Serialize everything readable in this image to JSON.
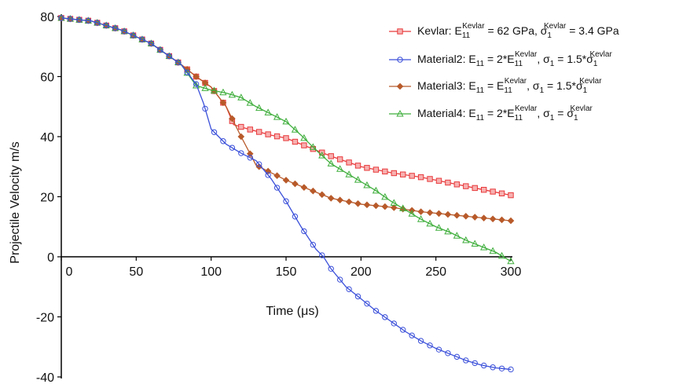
{
  "chart_data": {
    "type": "line",
    "title": "",
    "xlabel": "Time (μs)",
    "ylabel": "Projectile Velocity m/s",
    "xlim": [
      0,
      300
    ],
    "ylim": [
      -40,
      80
    ],
    "xticks": [
      "0",
      "50",
      "100",
      "150",
      "200",
      "250",
      "300"
    ],
    "yticks": [
      "80",
      "60",
      "40",
      "20",
      "0",
      "-20",
      "-40"
    ],
    "grid": false,
    "legend_position": "top-right",
    "series": [
      {
        "name": "Kevlar: E11Kevlar = 62 GPa, σ1Kevlar = 3.4 GPa",
        "legend_parts": {
          "a": "Kevlar: E",
          "b": "11",
          "c": "Kevlar",
          "d": " = 62 GPa, σ",
          "e": "1",
          "f": "Kevlar",
          "g": " = 3.4 GPa"
        },
        "color": "#e8393b",
        "marker": "square",
        "x": [
          0,
          20,
          40,
          60,
          70,
          80,
          90,
          100,
          110,
          115,
          125,
          140,
          150,
          160,
          170,
          180,
          200,
          220,
          240,
          260,
          280,
          300
        ],
        "y": [
          79.5,
          78.5,
          75.5,
          71,
          67.5,
          64,
          60,
          56.5,
          50,
          44,
          42.5,
          40.5,
          39.5,
          37.5,
          35.5,
          33.5,
          30,
          28,
          26.5,
          24.5,
          22.5,
          20.5
        ]
      },
      {
        "name": "Material2: E11 = 2*E11Kevlar, σ1 = 1.5*σ1Kevlar",
        "legend_parts": {
          "a": "Material2: E",
          "b": "11",
          "c": "",
          "d": " = 2*E",
          "e": "11",
          "f": "Kevlar",
          "g": ", σ",
          "h": "1",
          "i": " = 1.5*σ",
          "j": "1",
          "k": "Kevlar"
        },
        "color": "#3a4fd9",
        "marker": "circle",
        "x": [
          0,
          20,
          40,
          60,
          70,
          80,
          90,
          95,
          100,
          105,
          110,
          120,
          130,
          140,
          150,
          160,
          170,
          175,
          180,
          190,
          200,
          210,
          220,
          230,
          240,
          250,
          260,
          270,
          280,
          290,
          300
        ],
        "y": [
          79.5,
          78.5,
          75.5,
          71,
          67.5,
          64,
          57.5,
          51,
          42.5,
          40,
          37.5,
          34.5,
          32,
          26,
          18.5,
          10,
          2.5,
          0,
          -4,
          -10,
          -14,
          -18,
          -21.5,
          -25,
          -28,
          -30.5,
          -32.5,
          -34.5,
          -36,
          -37,
          -37.5
        ]
      },
      {
        "name": "Material3: E11 = E11Kevlar, σ1 = 1.5*σ1Kevlar",
        "legend_parts": {
          "a": "Material3: E",
          "b": "11",
          "c": "",
          "d": " = E",
          "e": "11",
          "f": "Kevlar",
          "g": ", σ",
          "h": "1",
          "i": " = 1.5*σ",
          "j": "1",
          "k": "Kevlar"
        },
        "color": "#b85a2a",
        "marker": "diamond",
        "x": [
          0,
          20,
          40,
          60,
          70,
          80,
          90,
          100,
          110,
          120,
          130,
          140,
          150,
          160,
          170,
          180,
          200,
          220,
          240,
          260,
          280,
          300
        ],
        "y": [
          79.5,
          78.5,
          75.5,
          71,
          67.5,
          64,
          60,
          56.5,
          50,
          40,
          30.5,
          28,
          25.5,
          23.5,
          21.5,
          19.5,
          17.5,
          16.5,
          15,
          14,
          13,
          12
        ]
      },
      {
        "name": "Material4: E11 = 2*E11Kevlar, σ1 = σ1Kevlar",
        "legend_parts": {
          "a": "Material4: E",
          "b": "11",
          "c": "",
          "d": " = 2*E",
          "e": "11",
          "f": "Kevlar",
          "g": ", σ",
          "h": "1",
          "i": " = σ",
          "j": "1",
          "k": "Kevlar"
        },
        "color": "#3fae3c",
        "marker": "triangle",
        "x": [
          0,
          20,
          40,
          60,
          70,
          80,
          90,
          100,
          110,
          120,
          130,
          140,
          150,
          160,
          170,
          180,
          190,
          200,
          210,
          220,
          230,
          240,
          250,
          260,
          270,
          280,
          290,
          300
        ],
        "y": [
          79.5,
          78.5,
          75.5,
          71,
          67.5,
          64,
          57,
          55.5,
          54.5,
          53,
          50,
          47.5,
          45,
          40.5,
          35.5,
          31,
          28,
          25,
          22,
          18.5,
          15.5,
          12.5,
          10,
          8,
          5.5,
          3.5,
          1.5,
          -1.5
        ]
      }
    ]
  }
}
